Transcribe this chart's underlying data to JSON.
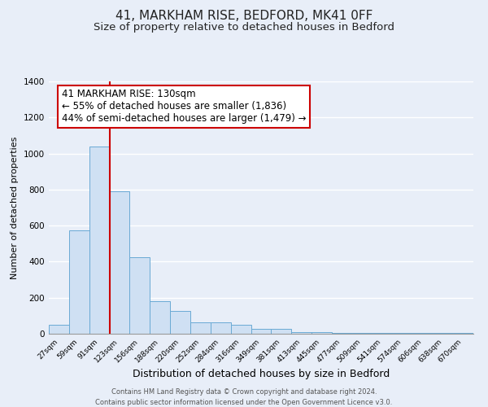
{
  "title": "41, MARKHAM RISE, BEDFORD, MK41 0FF",
  "subtitle": "Size of property relative to detached houses in Bedford",
  "xlabel": "Distribution of detached houses by size in Bedford",
  "ylabel": "Number of detached properties",
  "bar_labels": [
    "27sqm",
    "59sqm",
    "91sqm",
    "123sqm",
    "156sqm",
    "188sqm",
    "220sqm",
    "252sqm",
    "284sqm",
    "316sqm",
    "349sqm",
    "381sqm",
    "413sqm",
    "445sqm",
    "477sqm",
    "509sqm",
    "541sqm",
    "574sqm",
    "606sqm",
    "638sqm",
    "670sqm"
  ],
  "bar_heights": [
    50,
    575,
    1040,
    790,
    425,
    180,
    125,
    65,
    65,
    50,
    25,
    25,
    10,
    10,
    5,
    5,
    5,
    5,
    5,
    5,
    5
  ],
  "bar_color": "#cfe0f3",
  "bar_edge_color": "#6aaad4",
  "bar_width": 1.0,
  "ylim": [
    0,
    1400
  ],
  "yticks": [
    0,
    200,
    400,
    600,
    800,
    1000,
    1200,
    1400
  ],
  "vline_color": "#cc0000",
  "annotation_text": "41 MARKHAM RISE: 130sqm\n← 55% of detached houses are smaller (1,836)\n44% of semi-detached houses are larger (1,479) →",
  "annotation_box_edge_color": "#cc0000",
  "annotation_box_face_color": "#ffffff",
  "annotation_fontsize": 8.5,
  "title_fontsize": 11,
  "subtitle_fontsize": 9.5,
  "xlabel_fontsize": 9,
  "ylabel_fontsize": 8,
  "footnote1": "Contains HM Land Registry data © Crown copyright and database right 2024.",
  "footnote2": "Contains public sector information licensed under the Open Government Licence v3.0.",
  "background_color": "#e8eef8",
  "plot_bg_color": "#e8eef8",
  "grid_color": "#ffffff"
}
